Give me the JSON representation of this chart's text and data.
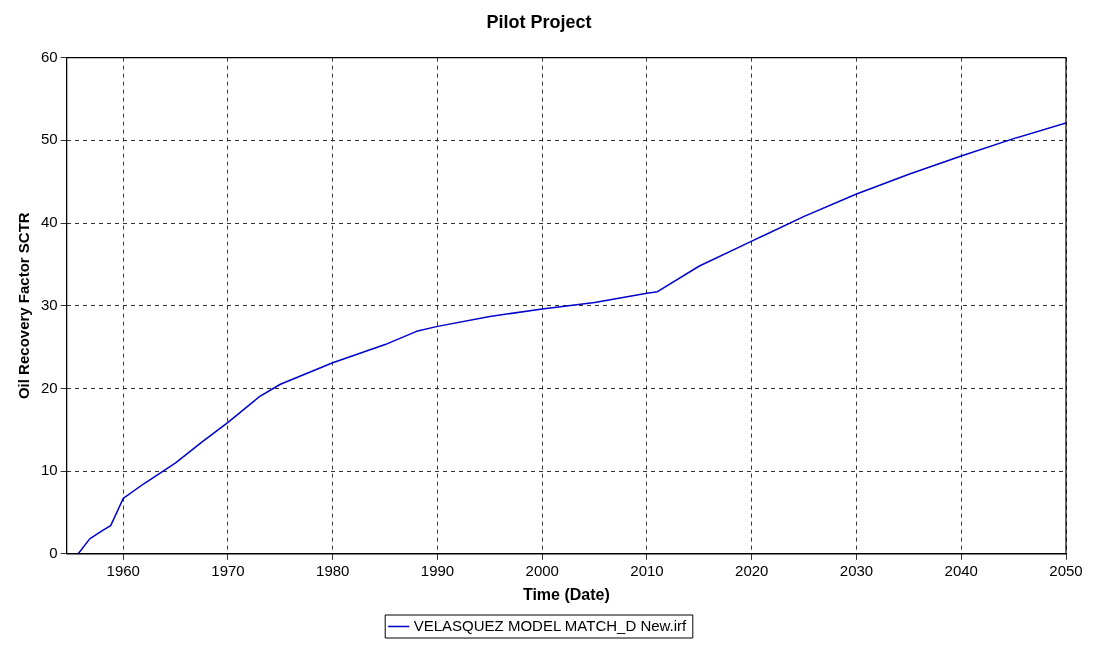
{
  "chart_data": {
    "type": "line",
    "title": "Pilot Project",
    "xlabel": "Time (Date)",
    "ylabel": "Oil Recovery Factor SCTR",
    "xlim": [
      1954.6,
      2050
    ],
    "xticks": [
      1960,
      1970,
      1980,
      1990,
      2000,
      2010,
      2020,
      2030,
      2040,
      2050
    ],
    "ylim": [
      0,
      60
    ],
    "yticks": [
      0,
      10,
      20,
      30,
      40,
      50,
      60
    ],
    "grid": true,
    "legend": "bottom",
    "line_style": "solid",
    "marker": "none",
    "series": [
      {
        "name": "VELASQUEZ MODEL MATCH_D New.irf",
        "color": "#0000cc",
        "x": [
          1955.7,
          1956.8,
          1958.0,
          1958.8,
          1960.0,
          1962.0,
          1965.0,
          1967.5,
          1970.0,
          1973.0,
          1975.0,
          1980.0,
          1985.0,
          1988.0,
          1990.0,
          1995.0,
          2000.0,
          2005.0,
          2010.0,
          2011.0,
          2015.0,
          2020.0,
          2025.0,
          2030.0,
          2035.0,
          2040.0,
          2045.0,
          2050.0
        ],
        "values": [
          0,
          1.8,
          2.8,
          3.4,
          6.7,
          8.5,
          11,
          13.5,
          15.9,
          19,
          20.5,
          23.1,
          25.3,
          26.9,
          27.5,
          28.7,
          29.6,
          30.4,
          31.5,
          31.7,
          34.8,
          37.8,
          40.8,
          43.5,
          45.9,
          48.1,
          50.2,
          52.1
        ]
      }
    ]
  }
}
